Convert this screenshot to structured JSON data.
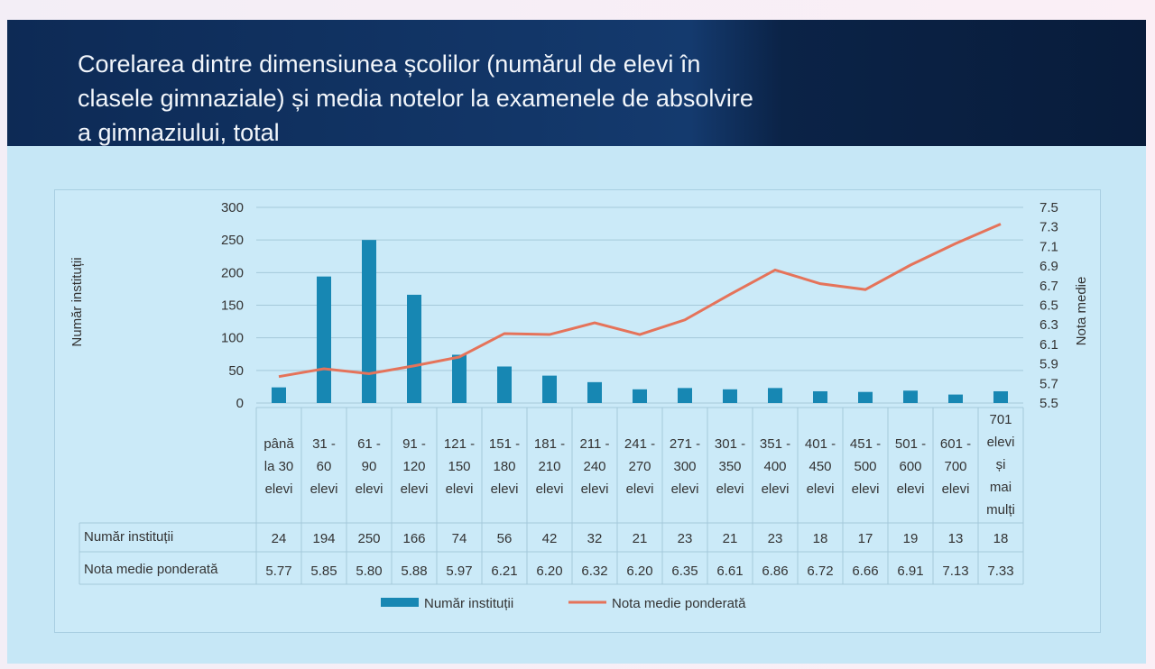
{
  "title": "Corelarea dintre dimensiunea școlilor (numărul de elevi în clasele gimnaziale) și media notelor la examenele de absolvire a gimnaziului, total",
  "chart_data": {
    "type": "bar+line",
    "categories": [
      [
        "până",
        "la 30",
        "elevi"
      ],
      [
        "31 -",
        "60",
        "elevi"
      ],
      [
        "61 -",
        "90",
        "elevi"
      ],
      [
        "91 -",
        "120",
        "elevi"
      ],
      [
        "121 -",
        "150",
        "elevi"
      ],
      [
        "151 -",
        "180",
        "elevi"
      ],
      [
        "181 -",
        "210",
        "elevi"
      ],
      [
        "211 -",
        "240",
        "elevi"
      ],
      [
        "241 -",
        "270",
        "elevi"
      ],
      [
        "271 -",
        "300",
        "elevi"
      ],
      [
        "301 -",
        "350",
        "elevi"
      ],
      [
        "351 -",
        "400",
        "elevi"
      ],
      [
        "401 -",
        "450",
        "elevi"
      ],
      [
        "451 -",
        "500",
        "elevi"
      ],
      [
        "501 -",
        "600",
        "elevi"
      ],
      [
        "601 -",
        "700",
        "elevi"
      ],
      [
        "701",
        "elevi",
        "și",
        "mai",
        "mulți"
      ]
    ],
    "series": [
      {
        "name": "Număr instituții",
        "type": "bar",
        "axis": "left",
        "color": "#1787b3",
        "values": [
          24,
          194,
          250,
          166,
          74,
          56,
          42,
          32,
          21,
          23,
          21,
          23,
          18,
          17,
          19,
          13,
          18
        ]
      },
      {
        "name": "Nota medie ponderată",
        "type": "line",
        "axis": "right",
        "color": "#e5735a",
        "values": [
          5.77,
          5.85,
          5.8,
          5.88,
          5.97,
          6.21,
          6.2,
          6.32,
          6.2,
          6.35,
          6.61,
          6.86,
          6.72,
          6.66,
          6.91,
          7.13,
          7.33
        ]
      }
    ],
    "ylabel": "Număr instituții",
    "y2label": "Nota medie",
    "ylim": [
      0,
      300
    ],
    "yticks": [
      "0",
      "50",
      "100",
      "150",
      "200",
      "250",
      "300"
    ],
    "y2lim": [
      5.5,
      7.5
    ],
    "y2ticks": [
      "5.5",
      "5.7",
      "5.9",
      "6.1",
      "6.3",
      "6.5",
      "6.7",
      "6.9",
      "7.1",
      "7.3",
      "7.5"
    ],
    "grid": true,
    "legend": "bottom",
    "data_table": true
  }
}
